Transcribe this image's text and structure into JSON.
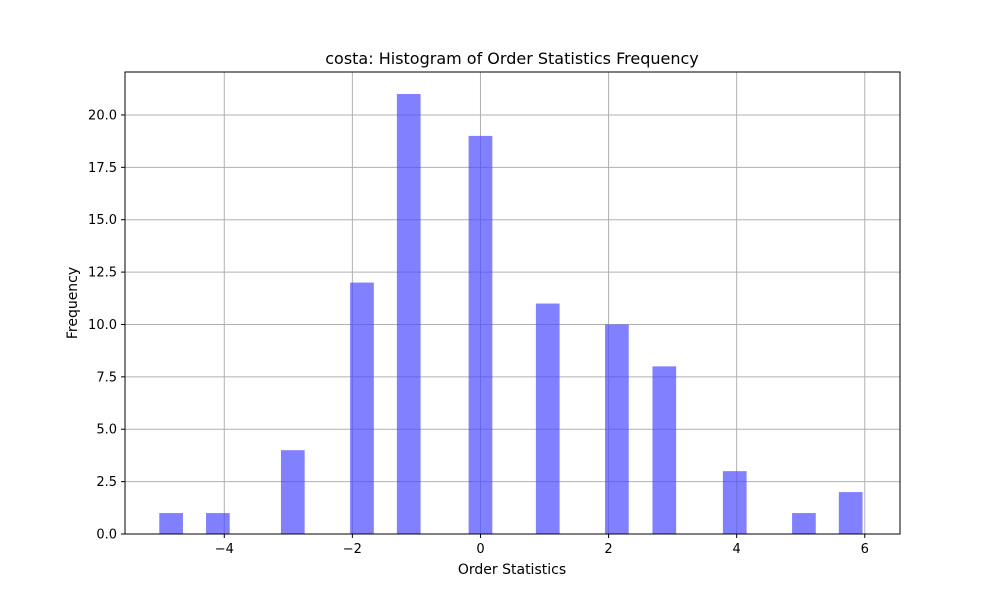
{
  "chart_data": {
    "type": "bar",
    "title": "costa: Histogram of Order Statistics Frequency",
    "xlabel": "Order Statistics",
    "ylabel": "Frequency",
    "x_ticks": [
      "−4",
      "−2",
      "0",
      "2",
      "4",
      "6"
    ],
    "y_ticks": [
      "0.0",
      "2.5",
      "5.0",
      "7.5",
      "10.0",
      "12.5",
      "15.0",
      "17.5",
      "20.0"
    ],
    "x": [
      -4.83,
      -4.1,
      -2.93,
      -1.85,
      -1.12,
      0.0,
      1.05,
      2.13,
      2.87,
      3.97,
      5.05,
      5.78
    ],
    "values": [
      1,
      1,
      4,
      12,
      21,
      19,
      11,
      10,
      8,
      3,
      1,
      2
    ],
    "bar_width": 0.37,
    "xlim": [
      -5.55,
      6.55
    ],
    "ylim": [
      0,
      22.05
    ],
    "grid": true,
    "bar_color": "#4b4bff",
    "bar_opacity": 0.7
  }
}
